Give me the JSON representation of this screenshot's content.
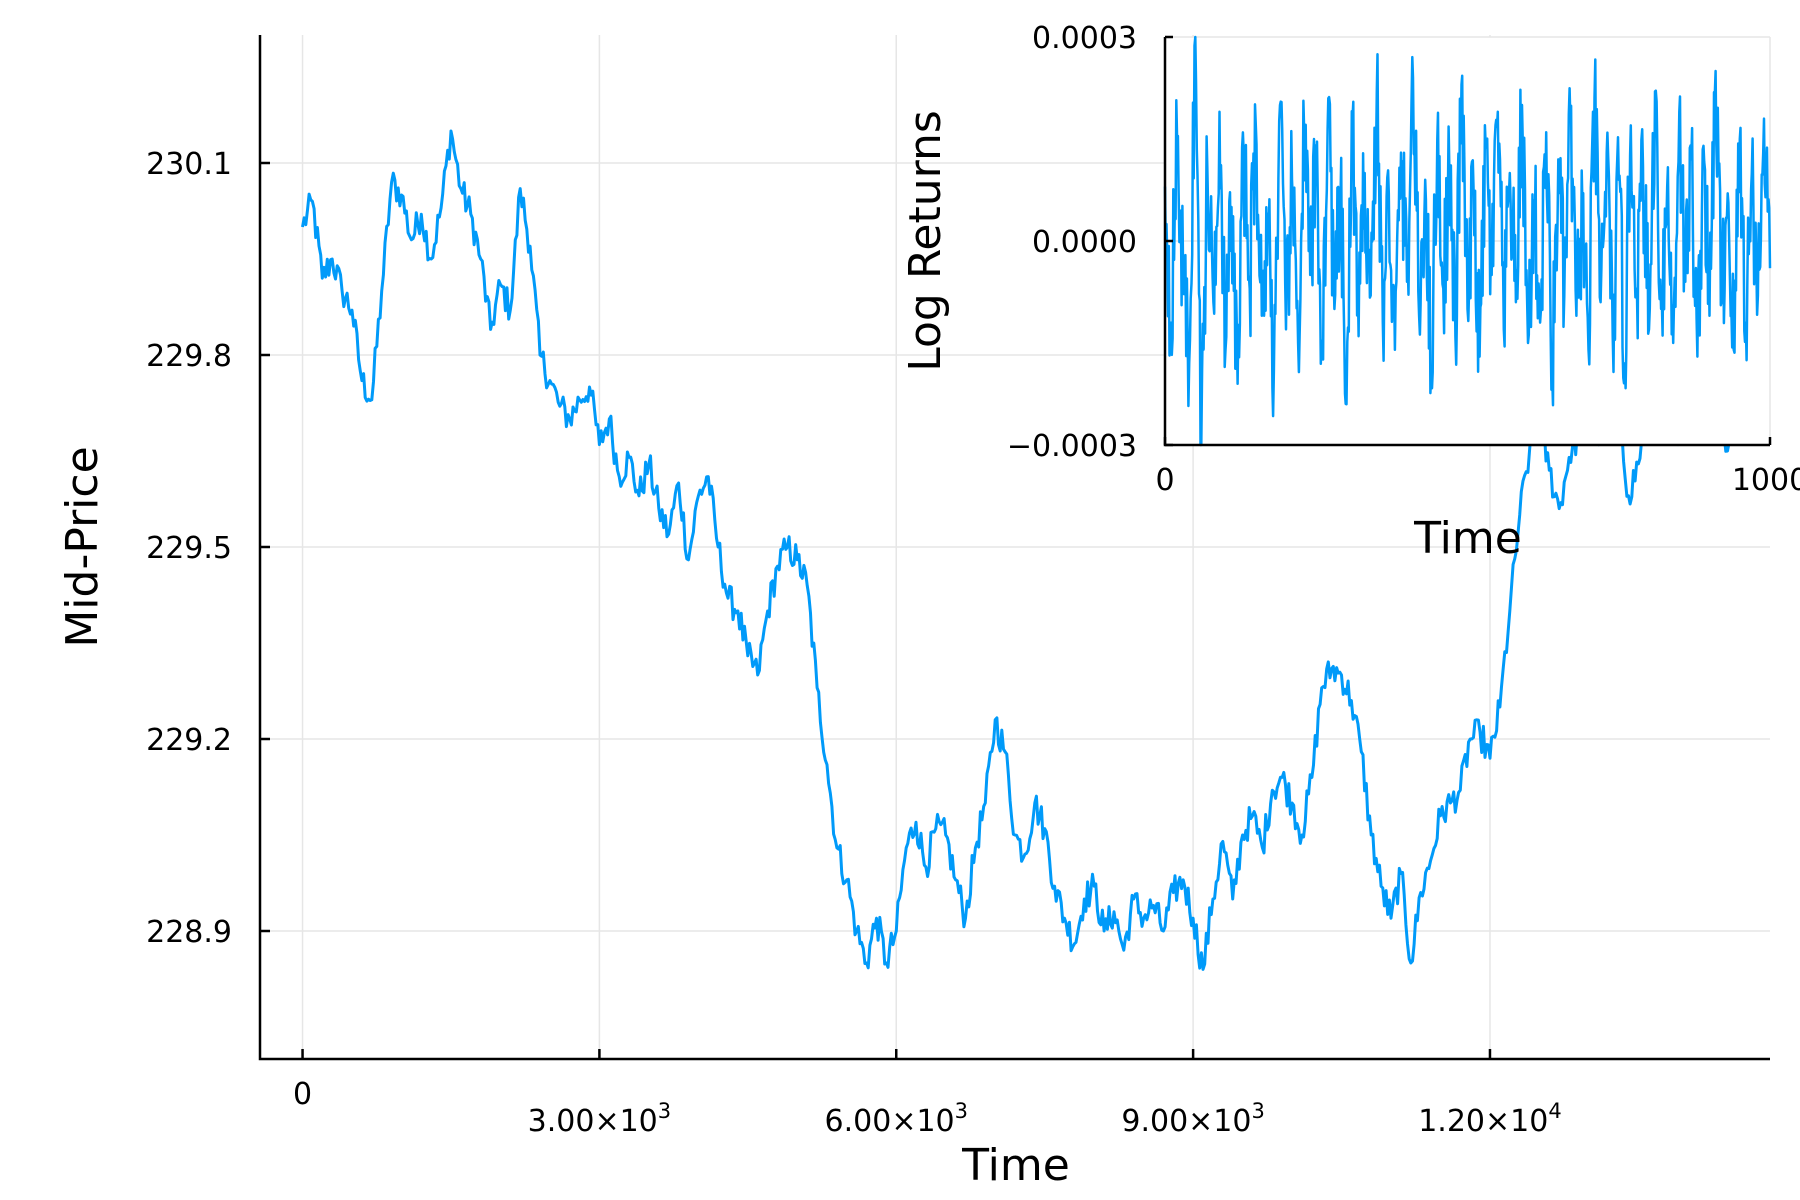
{
  "chart_data": [
    {
      "type": "line",
      "title": "",
      "xlabel": "Time",
      "ylabel": "Mid-Price",
      "xlim": [
        -430,
        14830
      ],
      "ylim": [
        228.7,
        230.3
      ],
      "grid": true,
      "legend": "none",
      "x_ticks": [
        {
          "value": 0,
          "base": "0",
          "exp": ""
        },
        {
          "value": 3000,
          "base": "3.00×10",
          "exp": "3"
        },
        {
          "value": 6000,
          "base": "6.00×10",
          "exp": "3"
        },
        {
          "value": 9000,
          "base": "9.00×10",
          "exp": "3"
        },
        {
          "value": 12000,
          "base": "1.20×10",
          "exp": "4"
        }
      ],
      "y_ticks": [
        {
          "value": 228.9,
          "label": "228.9"
        },
        {
          "value": 229.2,
          "label": "229.2"
        },
        {
          "value": 229.5,
          "label": "229.5"
        },
        {
          "value": 229.8,
          "label": "229.8"
        },
        {
          "value": 230.1,
          "label": "230.1"
        }
      ],
      "series": [
        {
          "color": "#009af9",
          "x": [
            0,
            100,
            200,
            300,
            400,
            500,
            600,
            700,
            800,
            900,
            1000,
            1100,
            1200,
            1300,
            1400,
            1500,
            1600,
            1700,
            1800,
            1900,
            2000,
            2100,
            2200,
            2300,
            2400,
            2500,
            2600,
            2700,
            2800,
            2900,
            3000,
            3100,
            3200,
            3300,
            3400,
            3500,
            3600,
            3700,
            3800,
            3900,
            4000,
            4100,
            4200,
            4300,
            4400,
            4500,
            4600,
            4700,
            4800,
            4900,
            5000,
            5100,
            5200,
            5300,
            5400,
            5500,
            5600,
            5700,
            5800,
            5900,
            6000,
            6100,
            6200,
            6300,
            6400,
            6500,
            6600,
            6700,
            6800,
            6900,
            7000,
            7100,
            7200,
            7300,
            7400,
            7500,
            7600,
            7700,
            7800,
            7900,
            8000,
            8100,
            8200,
            8300,
            8400,
            8500,
            8600,
            8700,
            8800,
            8900,
            9000,
            9100,
            9200,
            9300,
            9400,
            9500,
            9600,
            9700,
            9800,
            9900,
            10000,
            10100,
            10200,
            10300,
            10400,
            10500,
            10600,
            10700,
            10800,
            10900,
            11000,
            11100,
            11200,
            11300,
            11400,
            11500,
            11600,
            11700,
            11800,
            11900,
            12000,
            12100,
            12200,
            12300,
            12400,
            12500,
            12600,
            12700,
            12800,
            12900,
            13000,
            13100,
            13200,
            13300,
            13400,
            13500,
            13600,
            13700,
            13800,
            13900,
            14000,
            14100,
            14200,
            14300,
            14400,
            14500,
            14600,
            14700,
            14800
          ],
          "values": [
            230.0,
            230.04,
            229.92,
            229.95,
            229.9,
            229.87,
            229.76,
            229.73,
            229.9,
            230.07,
            230.05,
            229.98,
            230.02,
            229.95,
            230.03,
            230.15,
            230.06,
            230.02,
            229.95,
            229.84,
            229.91,
            229.87,
            230.06,
            229.97,
            229.8,
            229.76,
            229.72,
            229.7,
            229.73,
            229.75,
            229.66,
            229.7,
            229.61,
            229.64,
            229.58,
            229.63,
            229.56,
            229.52,
            229.6,
            229.48,
            229.58,
            229.61,
            229.5,
            229.42,
            229.4,
            229.33,
            229.3,
            229.4,
            229.47,
            229.5,
            229.48,
            229.44,
            229.28,
            229.16,
            229.03,
            228.98,
            228.9,
            228.85,
            228.92,
            228.85,
            228.9,
            229.03,
            229.07,
            229.0,
            229.06,
            229.05,
            228.98,
            228.92,
            229.03,
            229.1,
            229.23,
            229.18,
            229.05,
            229.02,
            229.1,
            229.06,
            228.97,
            228.92,
            228.88,
            228.95,
            228.97,
            228.9,
            228.93,
            228.87,
            228.95,
            228.92,
            228.94,
            228.9,
            228.96,
            228.98,
            228.92,
            228.84,
            228.95,
            229.04,
            228.95,
            229.05,
            229.08,
            229.03,
            229.12,
            229.14,
            229.1,
            229.05,
            229.14,
            229.28,
            229.31,
            229.3,
            229.26,
            229.18,
            229.05,
            228.97,
            228.92,
            228.99,
            228.85,
            228.96,
            229.01,
            229.08,
            229.1,
            229.12,
            229.2,
            229.21,
            229.17,
            229.25,
            229.4,
            229.55,
            229.65,
            229.7,
            229.62,
            229.56,
            229.64,
            229.68,
            229.72,
            229.66,
            229.74,
            229.7,
            229.58,
            229.63,
            229.72,
            229.78,
            229.74,
            229.66,
            229.7,
            229.76,
            229.68,
            229.72,
            229.65,
            229.73,
            229.76,
            229.7,
            229.74
          ]
        }
      ]
    },
    {
      "type": "line",
      "title": "",
      "xlabel": "Time",
      "ylabel": "Log Returns",
      "xlim": [
        0,
        1000
      ],
      "ylim": [
        -0.0003,
        0.0003
      ],
      "grid": true,
      "legend": "none",
      "x_ticks": [
        {
          "value": 0,
          "label": "0"
        },
        {
          "value": 1000,
          "label": "1000"
        }
      ],
      "y_ticks": [
        {
          "value": -0.0003,
          "label": "−0.0003"
        },
        {
          "value": 0,
          "label": "0.0000"
        },
        {
          "value": 0.0003,
          "label": "0.0003"
        }
      ],
      "series": [
        {
          "color": "#009af9",
          "x": [
            0,
            10,
            20,
            30,
            40,
            50,
            60,
            70,
            80,
            90,
            100,
            110,
            120,
            130,
            140,
            150,
            160,
            170,
            180,
            190,
            200,
            210,
            220,
            230,
            240,
            250,
            260,
            270,
            280,
            290,
            300,
            310,
            320,
            330,
            340,
            350,
            360,
            370,
            380,
            390,
            400,
            410,
            420,
            430,
            440,
            450,
            460,
            470,
            480,
            490,
            500,
            510,
            520,
            530,
            540,
            550,
            560,
            570,
            580,
            590,
            600,
            610,
            620,
            630,
            640,
            650,
            660,
            670,
            680,
            690,
            700,
            710,
            720,
            730,
            740,
            750,
            760,
            770,
            780,
            790,
            800,
            810,
            820,
            830,
            840,
            850,
            860,
            870,
            880,
            890,
            900,
            910,
            920,
            930,
            940,
            950,
            960,
            970,
            980,
            990,
            1000
          ],
          "values": [
            8e-05,
            -0.00012,
            0.00015,
            -6e-05,
            -0.00018,
            0.0003,
            -0.0003,
            0.00011,
            -9e-05,
            0.00019,
            -0.00016,
            5e-05,
            -0.00021,
            0.00013,
            -7e-05,
            0.00017,
            -0.00011,
            4e-05,
            -0.00019,
            0.0002,
            -0.00013,
            9e-05,
            -0.00015,
            0.00016,
            -5e-05,
            0.00012,
            -0.00017,
            0.00021,
            -0.0001,
            6e-05,
            -0.00024,
            0.00018,
            -0.00014,
            0.0001,
            -8e-05,
            0.00022,
            -0.00012,
            7e-05,
            -0.00016,
            0.00013,
            -6e-05,
            0.00024,
            -0.00011,
            9e-05,
            -0.00019,
            0.00015,
            -7e-05,
            0.00011,
            -0.00014,
            0.00023,
            -0.0001,
            8e-05,
            -0.00017,
            0.00014,
            -5e-05,
            0.00019,
            -0.00013,
            0.0001,
            -9e-05,
            0.0002,
            -0.00015,
            6e-05,
            -0.00012,
            0.00016,
            -0.0002,
            0.00012,
            -8e-05,
            0.00018,
            -0.00011,
            5e-05,
            -0.00016,
            0.00021,
            -9e-05,
            0.00013,
            -0.00014,
            9e-05,
            -0.00018,
            0.00017,
            -7e-05,
            0.00011,
            -0.00013,
            0.00022,
            -0.0001,
            8e-05,
            -0.00015,
            0.00019,
            -6e-05,
            0.00012,
            -0.00017,
            0.00014,
            -0.00011,
            0.00025,
            -9e-05,
            7e-05,
            -0.00016,
            0.00015,
            -0.00012,
            0.0001,
            -8e-05,
            0.00018,
            -4e-05
          ]
        }
      ]
    }
  ]
}
